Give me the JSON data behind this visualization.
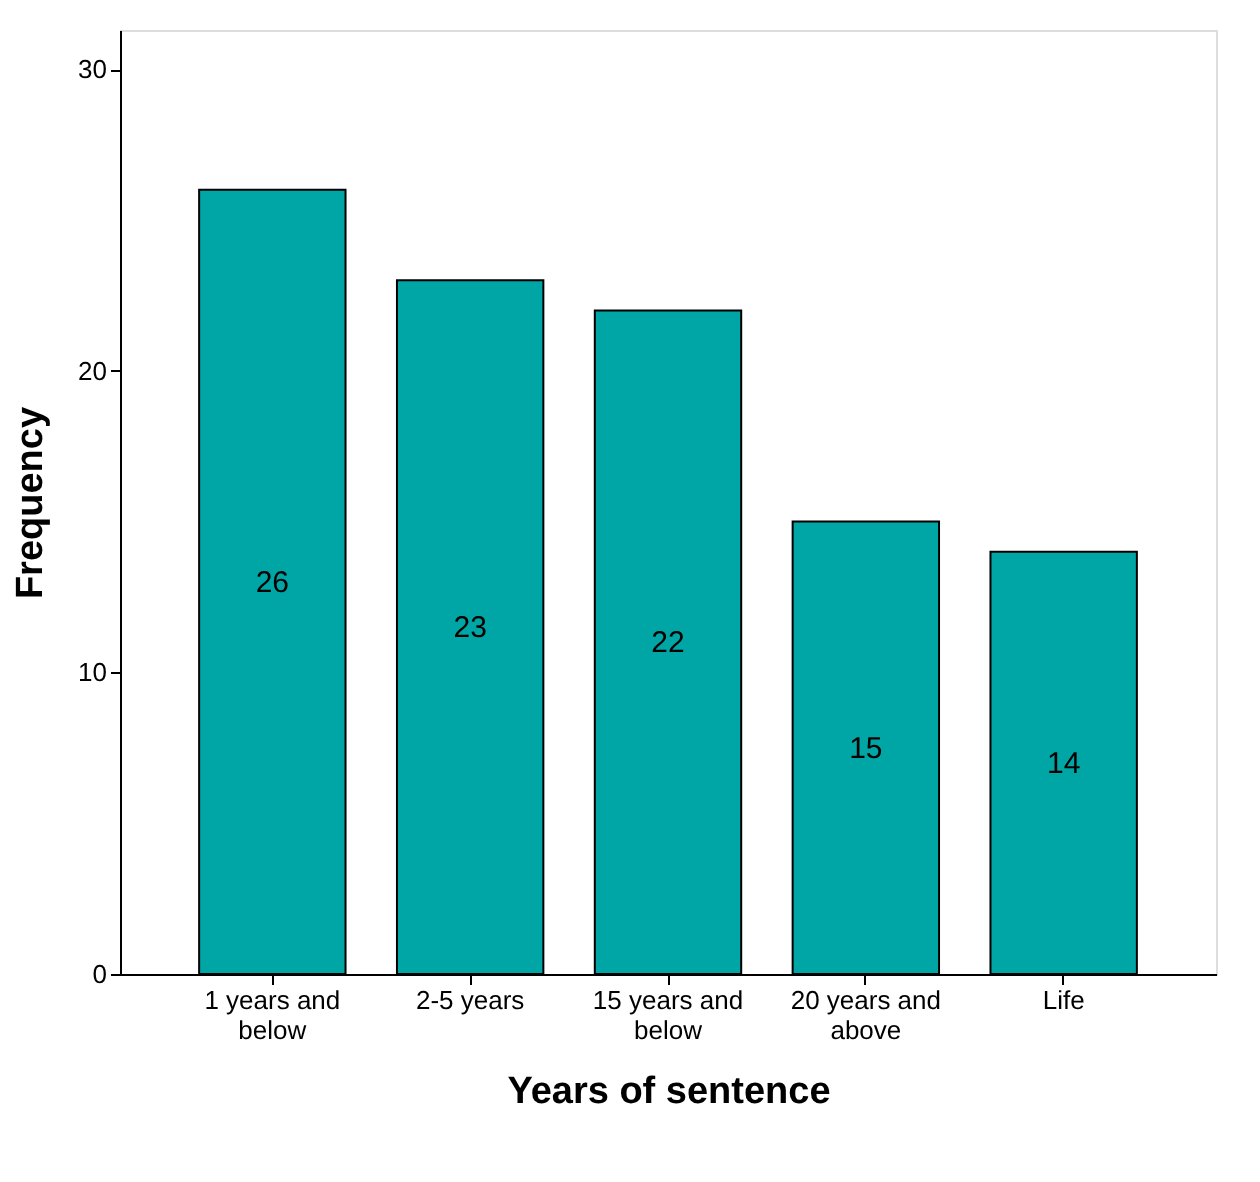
{
  "chart_data": {
    "type": "bar",
    "xlabel": "Years of sentence",
    "ylabel": "Frequency",
    "categories": [
      "1 years and below",
      "2-5 years",
      "15 years and below",
      "20 years and above",
      "Life"
    ],
    "values": [
      26,
      23,
      22,
      15,
      14
    ],
    "color": "#00a5a5",
    "ylim": [
      0,
      31.3
    ],
    "yticks": [
      0,
      10,
      20,
      30
    ],
    "grid": false,
    "data_labels": true
  }
}
